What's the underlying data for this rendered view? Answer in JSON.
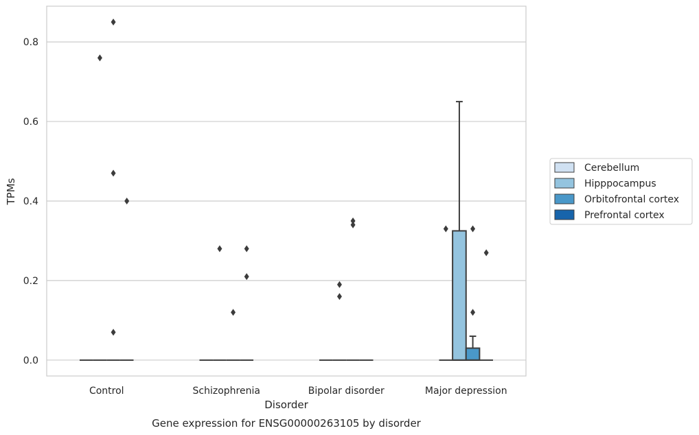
{
  "chart_data": {
    "type": "box",
    "title": "",
    "caption": "Gene expression for ENSG00000263105 by disorder",
    "xlabel": "Disorder",
    "ylabel": "TPMs",
    "ylim": [
      -0.04,
      0.89
    ],
    "yticks": [
      0.0,
      0.2,
      0.4,
      0.6,
      0.8
    ],
    "ytick_labels": [
      "0.0",
      "0.2",
      "0.4",
      "0.6",
      "0.8"
    ],
    "grid": "horizontal",
    "legend_position": "right",
    "categories": [
      "Control",
      "Schizophrenia",
      "Bipolar disorder",
      "Major depression"
    ],
    "series": [
      {
        "name": "Cerebellum",
        "color": "#d0e1f2",
        "boxes": [
          {
            "q1": 0,
            "median": 0,
            "q3": 0,
            "whisker_low": 0,
            "whisker_high": 0,
            "outliers": []
          },
          {
            "q1": 0,
            "median": 0,
            "q3": 0,
            "whisker_low": 0,
            "whisker_high": 0,
            "outliers": []
          },
          {
            "q1": 0,
            "median": 0,
            "q3": 0,
            "whisker_low": 0,
            "whisker_high": 0,
            "outliers": []
          },
          {
            "q1": 0,
            "median": 0,
            "q3": 0,
            "whisker_low": 0,
            "whisker_high": 0,
            "outliers": [
              0.33
            ]
          }
        ]
      },
      {
        "name": "Hipppocampus",
        "color": "#94c4df",
        "boxes": [
          {
            "q1": 0,
            "median": 0,
            "q3": 0,
            "whisker_low": 0,
            "whisker_high": 0,
            "outliers": [
              0.76
            ]
          },
          {
            "q1": 0,
            "median": 0,
            "q3": 0,
            "whisker_low": 0,
            "whisker_high": 0,
            "outliers": [
              0.28
            ]
          },
          {
            "q1": 0,
            "median": 0,
            "q3": 0,
            "whisker_low": 0,
            "whisker_high": 0,
            "outliers": [
              0.19,
              0.16
            ]
          },
          {
            "q1": 0,
            "median": 0,
            "q3": 0.325,
            "whisker_low": 0,
            "whisker_high": 0.65,
            "outliers": []
          }
        ]
      },
      {
        "name": "Orbitofrontal cortex",
        "color": "#4a98c9",
        "boxes": [
          {
            "q1": 0,
            "median": 0,
            "q3": 0,
            "whisker_low": 0,
            "whisker_high": 0,
            "outliers": [
              0.85,
              0.47,
              0.07
            ]
          },
          {
            "q1": 0,
            "median": 0,
            "q3": 0,
            "whisker_low": 0,
            "whisker_high": 0,
            "outliers": [
              0.12
            ]
          },
          {
            "q1": 0,
            "median": 0,
            "q3": 0,
            "whisker_low": 0,
            "whisker_high": 0,
            "outliers": [
              0.35,
              0.34
            ]
          },
          {
            "q1": 0,
            "median": 0,
            "q3": 0.03,
            "whisker_low": 0,
            "whisker_high": 0.06,
            "outliers": [
              0.33,
              0.12
            ]
          }
        ]
      },
      {
        "name": "Prefrontal cortex",
        "color": "#1764ab",
        "boxes": [
          {
            "q1": 0,
            "median": 0,
            "q3": 0,
            "whisker_low": 0,
            "whisker_high": 0,
            "outliers": [
              0.4
            ]
          },
          {
            "q1": 0,
            "median": 0,
            "q3": 0,
            "whisker_low": 0,
            "whisker_high": 0,
            "outliers": [
              0.28,
              0.21
            ]
          },
          {
            "q1": 0,
            "median": 0,
            "q3": 0,
            "whisker_low": 0,
            "whisker_high": 0,
            "outliers": []
          },
          {
            "q1": 0,
            "median": 0,
            "q3": 0,
            "whisker_low": 0,
            "whisker_high": 0,
            "outliers": [
              0.27
            ]
          }
        ]
      }
    ]
  }
}
